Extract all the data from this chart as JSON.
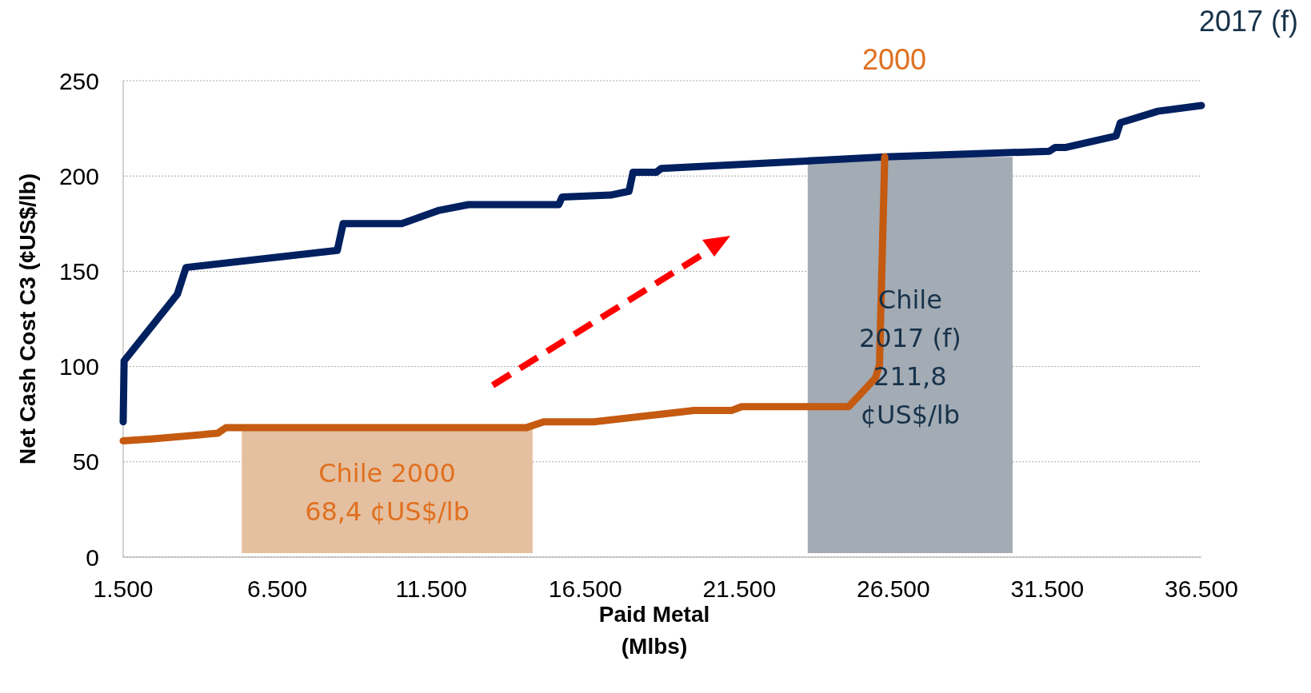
{
  "chart_data": {
    "type": "line",
    "xlabel": "Paid Metal\n(Mlbs)",
    "ylabel": "Net Cash Cost C3 (¢US$/lb)",
    "xlim": [
      1500,
      36500
    ],
    "ylim": [
      0,
      250
    ],
    "xticks": [
      {
        "value": 1500,
        "label": "1.500"
      },
      {
        "value": 6500,
        "label": "6.500"
      },
      {
        "value": 11500,
        "label": "11.500"
      },
      {
        "value": 16500,
        "label": "16.500"
      },
      {
        "value": 21500,
        "label": "21.500"
      },
      {
        "value": 26500,
        "label": "26.500"
      },
      {
        "value": 31500,
        "label": "31.500"
      },
      {
        "value": 36500,
        "label": "36.500"
      }
    ],
    "yticks": [
      0,
      50,
      100,
      150,
      200,
      250
    ],
    "grid": "y",
    "line_style": "solid",
    "marker": "none",
    "series": [
      {
        "name": "2017 (f)",
        "color": "#002060",
        "x": [
          1500,
          1530,
          3260,
          3540,
          8450,
          8640,
          10540,
          11760,
          12710,
          15640,
          15750,
          17320,
          17920,
          18050,
          18810,
          18970,
          26240,
          31560,
          31750,
          32100,
          33730,
          33870,
          35090,
          36500
        ],
        "values": [
          71,
          103,
          138,
          152,
          161,
          175,
          175,
          182,
          185,
          185,
          189,
          190,
          192,
          202,
          202,
          204,
          210,
          213,
          215,
          215,
          221,
          228,
          234,
          237
        ]
      },
      {
        "name": "2000",
        "color": "#c55a11",
        "x": [
          1500,
          2400,
          4570,
          4840,
          14600,
          15150,
          16780,
          18950,
          20030,
          21250,
          21580,
          25050,
          25460,
          25920,
          26050,
          26220
        ],
        "values": [
          61,
          62,
          65,
          68,
          68,
          71,
          71,
          75,
          77,
          77,
          79,
          79,
          86,
          94,
          101,
          210
        ]
      }
    ],
    "bands": [
      {
        "axis": "x",
        "from": 5350,
        "to": 14790,
        "label": "Chile 2000\n68,4 ¢US$/lb",
        "color": "#e4bd9b"
      },
      {
        "axis": "x",
        "from": 23720,
        "to": 30370,
        "label": "Chile\n2017 (f)\n211,8\n¢US$/lb",
        "color": "#9ea6b0"
      }
    ]
  }
}
